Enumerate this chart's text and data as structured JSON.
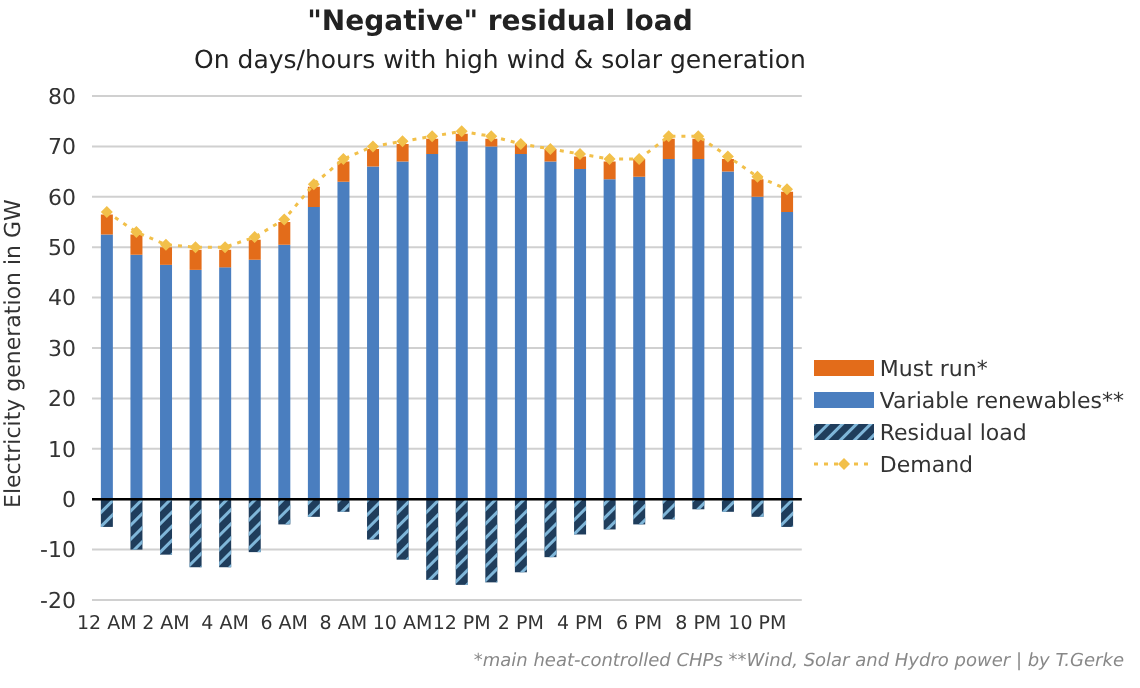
{
  "chart_data": {
    "type": "bar",
    "title": "\"Negative\" residual load",
    "subtitle": "On days/hours with high wind & solar generation",
    "ylabel": "Electricity generation in GW",
    "categories": [
      "12 AM",
      null,
      "2 AM",
      null,
      "4 AM",
      null,
      "6 AM",
      null,
      "8 AM",
      null,
      "10 AM",
      null,
      "12 PM",
      null,
      "2 PM",
      null,
      "4 PM",
      null,
      "6 PM",
      null,
      "8 PM",
      null,
      "10 PM",
      null
    ],
    "series": [
      {
        "name": "Residual load",
        "color": "#1f3d5c",
        "values": [
          -5.5,
          -10,
          -11,
          -13.5,
          -13.5,
          -10.5,
          -5,
          -3.5,
          -2.5,
          -8,
          -12,
          -16,
          -17,
          -16.5,
          -14.5,
          -11.5,
          -7,
          -6,
          -5,
          -4,
          -2,
          -2.5,
          -3.5,
          -5.5
        ]
      },
      {
        "name": "Variable renewables**",
        "color": "#4a7ebf",
        "values": [
          52.5,
          48.5,
          46.5,
          45.5,
          46,
          47.5,
          50.5,
          58,
          63,
          66,
          67,
          68.5,
          71,
          70,
          68.5,
          67,
          65.5,
          63.5,
          64,
          67.5,
          67.5,
          65,
          60,
          57
        ]
      },
      {
        "name": "Must run*",
        "color": "#e36c1a",
        "values": [
          4,
          4,
          3.5,
          4,
          3.5,
          4,
          4.5,
          4,
          4,
          3.5,
          3.5,
          3,
          1.5,
          1.5,
          2,
          2.5,
          2.5,
          3.5,
          3.5,
          4,
          4,
          2.5,
          3.5,
          4
        ]
      },
      {
        "name": "Demand",
        "type": "line",
        "color": "#f2c04a",
        "marker": "diamond",
        "line_style": "dotted",
        "values": [
          57,
          53,
          50.5,
          50,
          50,
          52,
          55.5,
          62.5,
          67.5,
          70,
          71,
          72,
          73,
          72,
          70.5,
          69.5,
          68.5,
          67.5,
          67.5,
          72,
          72,
          68,
          64,
          61.5
        ]
      }
    ],
    "stacked": true,
    "ylim": [
      -20,
      80
    ],
    "yticks": [
      -20,
      -10,
      0,
      10,
      20,
      30,
      40,
      50,
      60,
      70,
      80
    ],
    "grid": "y",
    "legend": "right",
    "annotations": [
      "*main heat-controlled CHPs **Wind, Solar and Hydro power | by T.Gerke"
    ]
  }
}
